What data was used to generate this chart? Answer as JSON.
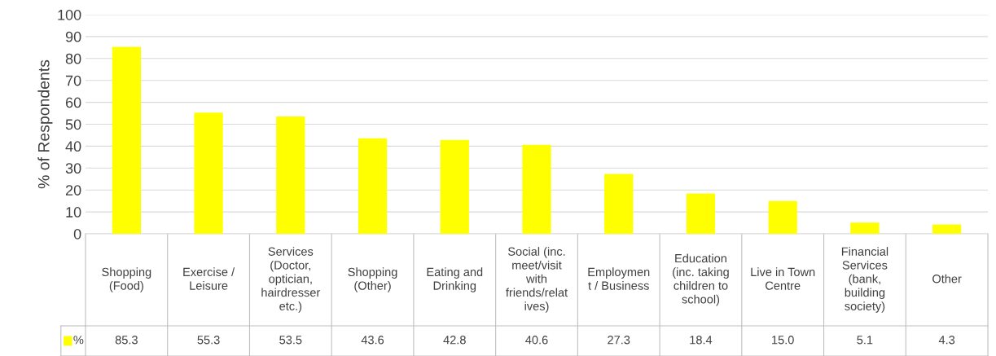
{
  "chart_data": {
    "type": "bar",
    "ylabel": "% of Respondents",
    "categories": [
      "Shopping\n(Food)",
      "Exercise /\nLeisure",
      "Services\n(Doctor,\noptician,\nhairdresser\netc.)",
      "Shopping\n(Other)",
      "Eating and\nDrinking",
      "Social (inc.\nmeet/visit\nwith\nfriends/relat\nives)",
      "Employmen\nt / Business",
      "Education\n(inc. taking\nchildren to\nschool)",
      "Live in Town\nCentre",
      "Financial\nServices\n(bank,\nbuilding\nsociety)",
      "Other"
    ],
    "series": [
      {
        "name": "%",
        "color": "#ffff00",
        "values": [
          85.3,
          55.3,
          53.5,
          43.6,
          42.8,
          40.6,
          27.3,
          18.4,
          15.0,
          5.1,
          4.3
        ],
        "value_labels": [
          "85.3",
          "55.3",
          "53.5",
          "43.6",
          "42.8",
          "40.6",
          "27.3",
          "18.4",
          "15.0",
          "5.1",
          "4.3"
        ]
      }
    ],
    "ylim": [
      0,
      100
    ],
    "yticks": [
      0,
      10,
      20,
      30,
      40,
      50,
      60,
      70,
      80,
      90,
      100
    ],
    "grid": "y",
    "legend": "bottom"
  }
}
